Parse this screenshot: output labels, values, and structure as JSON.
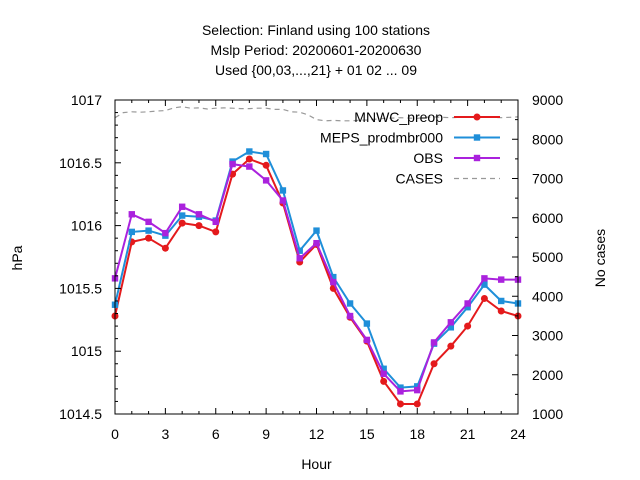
{
  "chart_data": {
    "type": "line",
    "title_lines": [
      "Selection: Finland using   100 stations",
      "Mslp   Period: 20200601-20200630",
      "Used {00,03,...,21} + 01 02 ... 09"
    ],
    "xlabel": "Hour",
    "ylabel": "hPa",
    "y2label": "No cases",
    "xlim": [
      0,
      24
    ],
    "ylim": [
      1014.5,
      1017
    ],
    "y2lim": [
      1000,
      9000
    ],
    "xticks": [
      "0",
      "3",
      "6",
      "9",
      "12",
      "15",
      "18",
      "21",
      "24"
    ],
    "yticks": [
      "1014.5",
      "1015",
      "1015.5",
      "1016",
      "1016.5",
      "1017"
    ],
    "y2ticks": [
      "1000",
      "2000",
      "3000",
      "4000",
      "5000",
      "6000",
      "7000",
      "8000",
      "9000"
    ],
    "grid": false,
    "legend_position": "top-right",
    "x": [
      0,
      1,
      2,
      3,
      4,
      5,
      6,
      7,
      8,
      9,
      10,
      11,
      12,
      13,
      14,
      15,
      16,
      17,
      18,
      19,
      20,
      21,
      22,
      23,
      24
    ],
    "series": [
      {
        "name": "MNWC_preop",
        "color": "#e41a1c",
        "axis": "left",
        "marker": "filled-circle",
        "values": [
          1015.28,
          1015.87,
          1015.9,
          1015.82,
          1016.02,
          1016.0,
          1015.95,
          1016.41,
          1016.53,
          1016.48,
          1016.18,
          1015.71,
          1015.85,
          1015.5,
          1015.27,
          1015.08,
          1014.76,
          1014.58,
          1014.58,
          1014.9,
          1015.04,
          1015.2,
          1015.42,
          1015.32,
          1015.28
        ]
      },
      {
        "name": "MEPS_prodmbr000",
        "color": "#1f8fd9",
        "axis": "left",
        "marker": "filled-square",
        "values": [
          1015.37,
          1015.95,
          1015.96,
          1015.92,
          1016.08,
          1016.07,
          1016.04,
          1016.51,
          1016.59,
          1016.57,
          1016.28,
          1015.8,
          1015.96,
          1015.59,
          1015.38,
          1015.22,
          1014.86,
          1014.71,
          1014.72,
          1015.06,
          1015.19,
          1015.35,
          1015.53,
          1015.4,
          1015.38
        ]
      },
      {
        "name": "OBS",
        "color": "#aa22dd",
        "axis": "left",
        "marker": "filled-square",
        "values": [
          1015.58,
          1016.09,
          1016.03,
          1015.94,
          1016.15,
          1016.09,
          1016.03,
          1016.49,
          1016.47,
          1016.36,
          1016.2,
          1015.74,
          1015.86,
          1015.55,
          1015.28,
          1015.09,
          1014.82,
          1014.68,
          1014.69,
          1015.07,
          1015.23,
          1015.38,
          1015.58,
          1015.57,
          1015.57
        ]
      },
      {
        "name": "CASES",
        "color": "#999999",
        "axis": "right",
        "dashed": true,
        "x": [
          0,
          0.5,
          1,
          1.5,
          2,
          2.5,
          3,
          3.5,
          4,
          4.5,
          5,
          5.5,
          6,
          6.5,
          7,
          7.5,
          8,
          8.5,
          9,
          9.5,
          10,
          10.5,
          11,
          11.5,
          12,
          12.5,
          13,
          13.5,
          14,
          14.5,
          15,
          15.5,
          16,
          16.5,
          17,
          17.5,
          18,
          18.5,
          19,
          19.5,
          20,
          20.5,
          21,
          21.5,
          22,
          22.5,
          23,
          23.5,
          24
        ],
        "values": [
          8550,
          8680,
          8700,
          8690,
          8700,
          8720,
          8730,
          8800,
          8830,
          8790,
          8800,
          8770,
          8790,
          8800,
          8790,
          8780,
          8780,
          8790,
          8790,
          8760,
          8760,
          8700,
          8690,
          8620,
          8500,
          8470,
          8480,
          8470,
          8470,
          8480,
          8490,
          8510,
          8530,
          8540,
          8550,
          8540,
          8530,
          8560,
          8570,
          8560,
          8550,
          8560,
          8560,
          8570,
          8570,
          8560,
          8550,
          8560,
          8570
        ]
      }
    ]
  }
}
